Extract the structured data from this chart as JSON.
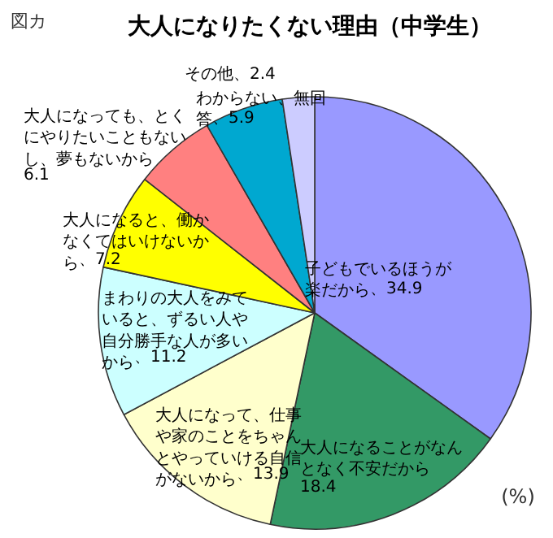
{
  "chart_data": {
    "type": "pie",
    "title": "大人になりたくない理由（中学生）",
    "categories": [
      "子どもでいるほうが楽だから",
      "大人になることがなんとなく不安だから",
      "大人になって、仕事や家のことをちゃんとやっていける自信がないから",
      "まわりの大人をみていると、ずるい人や自分勝手な人が多いから",
      "大人になると、働かなくてはいけないから",
      "大人になっても、とくにやりたいこともないし、夢もないから",
      "わからない、無回答",
      "その他"
    ],
    "values": [
      34.9,
      18.4,
      13.9,
      11.2,
      7.2,
      6.1,
      5.9,
      2.4
    ],
    "colors": [
      "#9999ff",
      "#339966",
      "#ffffcc",
      "#ccffff",
      "#ffff00",
      "#ff8080",
      "#00a8d0",
      "#ccccff"
    ],
    "value_labels": [
      "、34.9",
      "18.4",
      "、13.9",
      "、11.2",
      "、7.2",
      "6.1",
      "、5.9",
      "、2.4"
    ],
    "annotations": [
      "図カ",
      "(%)"
    ]
  }
}
